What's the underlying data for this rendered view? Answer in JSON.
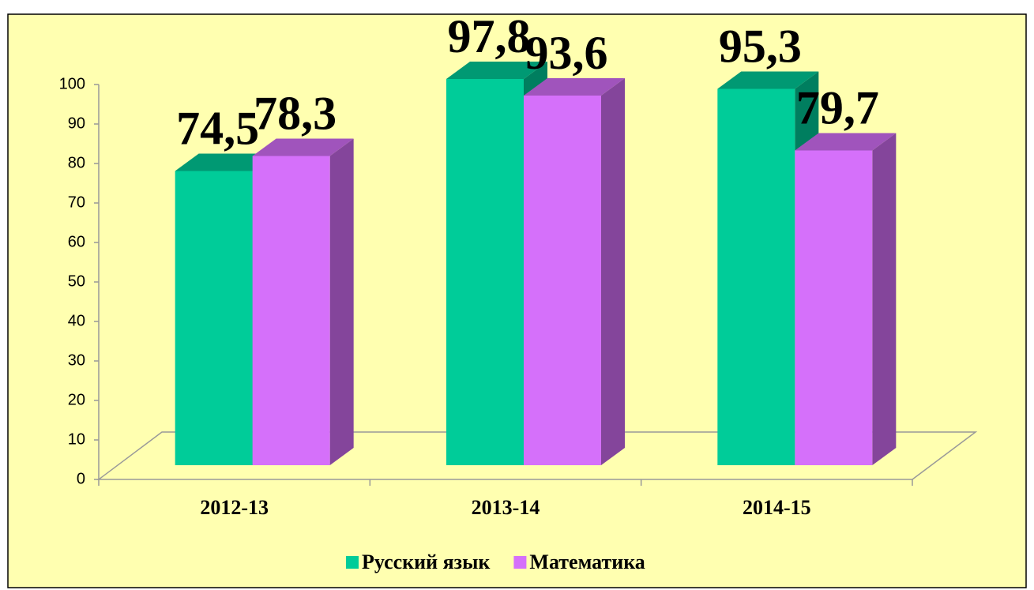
{
  "chart_data": {
    "type": "bar3d",
    "categories": [
      "2012-13",
      "2013-14",
      "2014-15"
    ],
    "series": [
      {
        "name": "Русский язык",
        "color": "#00cc99",
        "values": [
          74.5,
          97.8,
          95.3
        ],
        "value_labels": [
          "74,5",
          "97,8",
          "95,3"
        ]
      },
      {
        "name": "Математика",
        "color": "#d570fa",
        "values": [
          78.3,
          93.6,
          79.7
        ],
        "value_labels": [
          "78,3",
          "93,6",
          "79,7"
        ]
      }
    ],
    "ylim": [
      0,
      100
    ],
    "yticks": [
      0,
      10,
      20,
      30,
      40,
      50,
      60,
      70,
      80,
      90,
      100
    ],
    "legend": "bottom",
    "background": "#ffffb0"
  }
}
